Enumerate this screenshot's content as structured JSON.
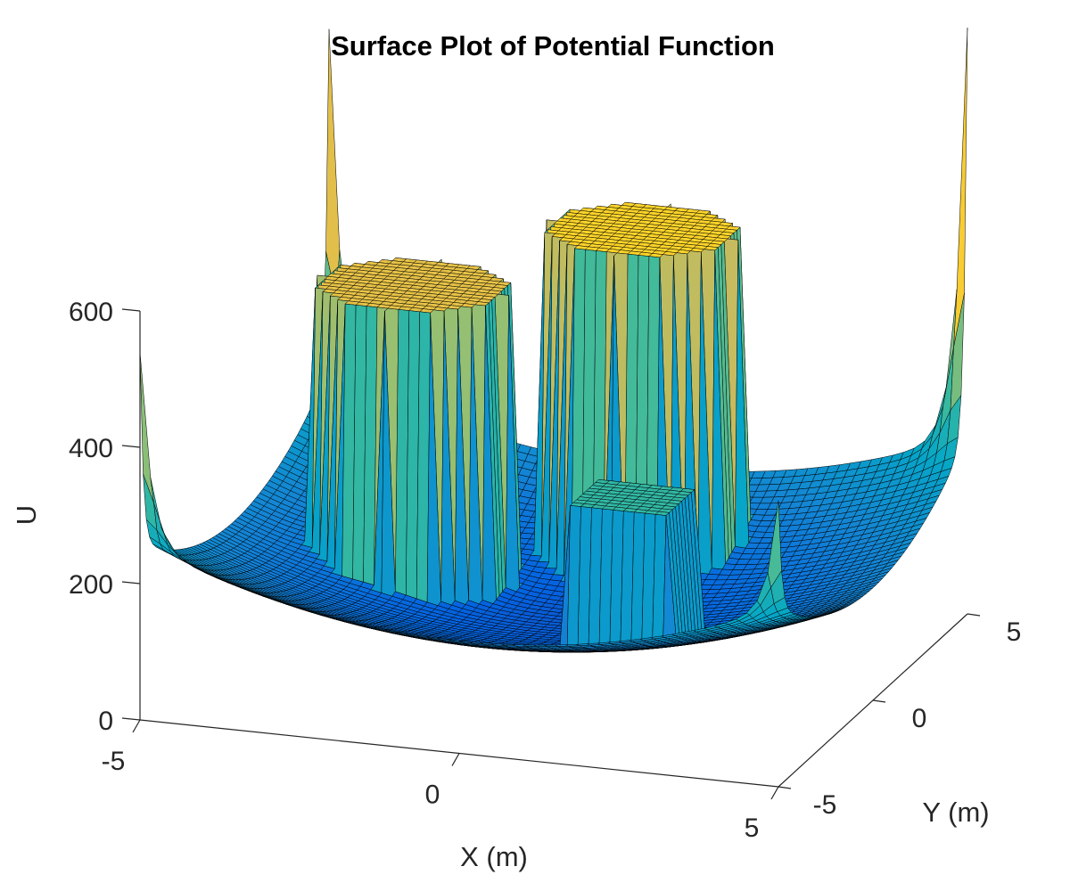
{
  "chart_data": {
    "type": "surface",
    "title": "Surface Plot of Potential Function",
    "xlabel": "X (m)",
    "ylabel": "Y (m)",
    "zlabel": "U",
    "xlim": [
      -5,
      5
    ],
    "ylim": [
      -5,
      5
    ],
    "zlim": [
      0,
      600
    ],
    "x_ticks": [
      {
        "value": -5,
        "label": "-5"
      },
      {
        "value": 0,
        "label": "0"
      },
      {
        "value": 5,
        "label": "5"
      }
    ],
    "y_ticks": [
      {
        "value": -5,
        "label": "-5"
      },
      {
        "value": 0,
        "label": "0"
      },
      {
        "value": 5,
        "label": "5"
      }
    ],
    "z_ticks": [
      {
        "value": 0,
        "label": "0"
      },
      {
        "value": 200,
        "label": "200"
      },
      {
        "value": 400,
        "label": "400"
      },
      {
        "value": 600,
        "label": "600"
      }
    ],
    "colormap": "parula",
    "colormap_stops": [
      "#352a87",
      "#0363e1",
      "#1485d4",
      "#06a7c6",
      "#38b99e",
      "#92bf73",
      "#d9ba56",
      "#fcce2e",
      "#f9fb0e"
    ],
    "edge_color": "#000000",
    "grid": false,
    "baseline_potential": {
      "min": 70,
      "at_corners": 260
    },
    "obstacles": [
      {
        "shape": "cylinder",
        "center_x": -2.5,
        "center_y": 1.0,
        "radius": 1.5,
        "top_u": 510
      },
      {
        "shape": "cylinder",
        "center_x": 0.5,
        "center_y": 3.0,
        "radius": 1.5,
        "top_u": 570
      },
      {
        "shape": "slab",
        "x_from": 1.0,
        "x_to": 2.5,
        "y_from": -2.5,
        "y_to": -1.0,
        "top_u": 310
      }
    ],
    "corner_spikes": [
      {
        "x": -5,
        "y": -5,
        "peak_u": 540
      },
      {
        "x": -5,
        "y": 5,
        "peak_u": 760
      },
      {
        "x": 5,
        "y": 5,
        "peak_u": 860
      },
      {
        "x": 5,
        "y": -5,
        "peak_u": 420
      }
    ]
  }
}
